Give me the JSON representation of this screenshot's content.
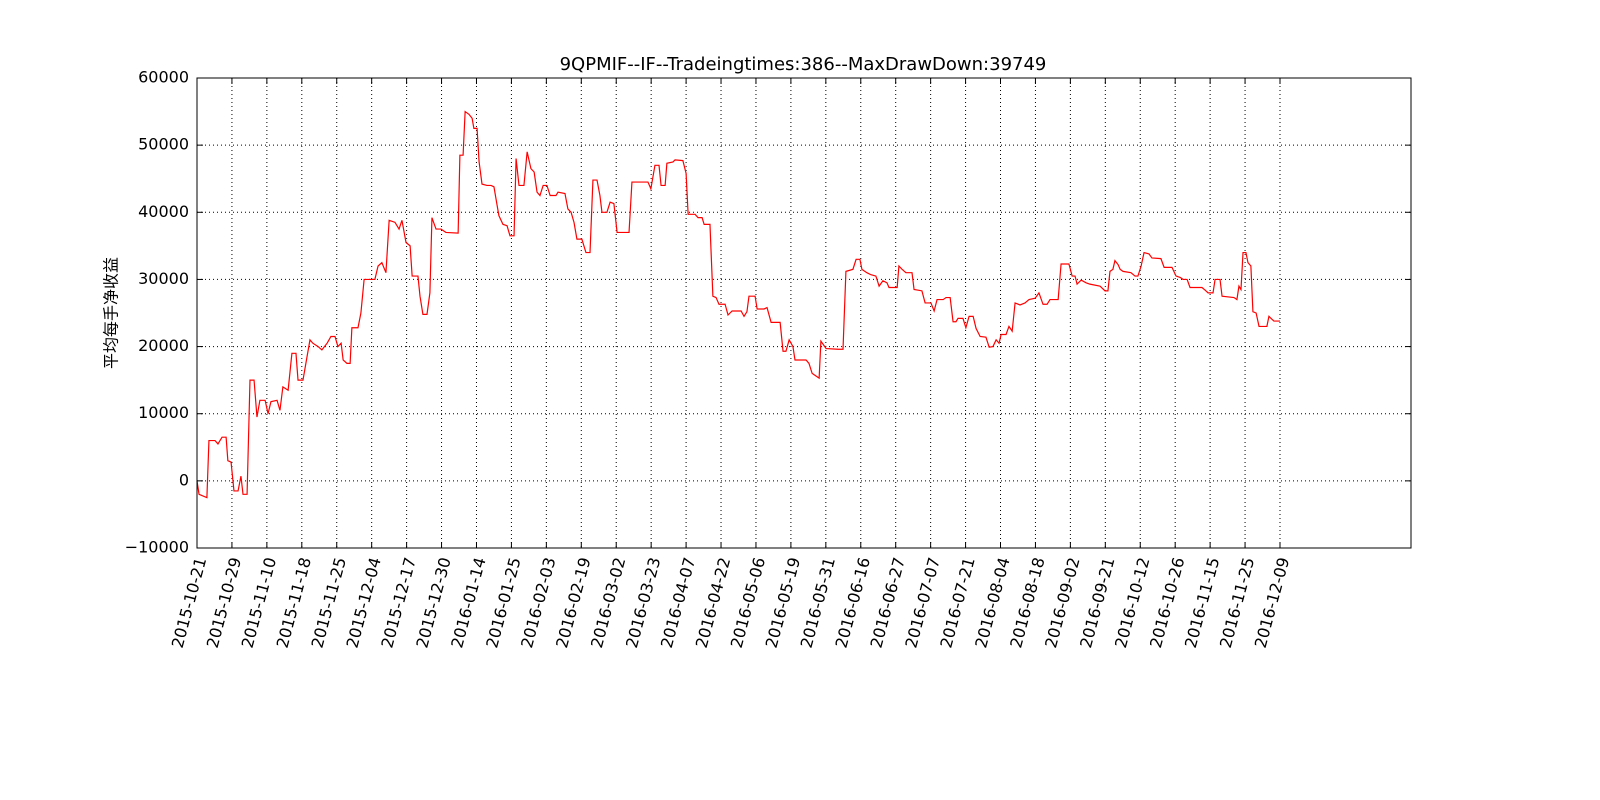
{
  "chart_data": {
    "type": "line",
    "title": "9QPMIF--IF--Tradeingtimes:386--MaxDrawDown:39749",
    "ylabel": "平均每手净收益",
    "color": "#ff0000",
    "grid": true,
    "xlim": [
      0,
      417
    ],
    "ylim": [
      -10000,
      60000
    ],
    "yticks": [
      {
        "value": -10000,
        "label": "−10000"
      },
      0,
      10000,
      20000,
      30000,
      40000,
      50000,
      60000
    ],
    "xticks": [
      {
        "value": 0,
        "label": "2015-10-21"
      },
      {
        "value": 12,
        "label": "2015-10-29"
      },
      {
        "value": 24,
        "label": "2015-11-10"
      },
      {
        "value": 36,
        "label": "2015-11-18"
      },
      {
        "value": 48,
        "label": "2015-11-25"
      },
      {
        "value": 60,
        "label": "2015-12-04"
      },
      {
        "value": 72,
        "label": "2015-12-17"
      },
      {
        "value": 84,
        "label": "2015-12-30"
      },
      {
        "value": 96,
        "label": "2016-01-14"
      },
      {
        "value": 108,
        "label": "2016-01-25"
      },
      {
        "value": 120,
        "label": "2016-02-03"
      },
      {
        "value": 132,
        "label": "2016-02-19"
      },
      {
        "value": 144,
        "label": "2016-03-02"
      },
      {
        "value": 156,
        "label": "2016-03-23"
      },
      {
        "value": 168,
        "label": "2016-04-07"
      },
      {
        "value": 180,
        "label": "2016-04-22"
      },
      {
        "value": 192,
        "label": "2016-05-06"
      },
      {
        "value": 204,
        "label": "2016-05-19"
      },
      {
        "value": 216,
        "label": "2016-05-31"
      },
      {
        "value": 228,
        "label": "2016-06-16"
      },
      {
        "value": 240,
        "label": "2016-06-27"
      },
      {
        "value": 252,
        "label": "2016-07-07"
      },
      {
        "value": 264,
        "label": "2016-07-21"
      },
      {
        "value": 276,
        "label": "2016-08-04"
      },
      {
        "value": 288,
        "label": "2016-08-18"
      },
      {
        "value": 300,
        "label": "2016-09-02"
      },
      {
        "value": 312,
        "label": "2016-09-21"
      },
      {
        "value": 324,
        "label": "2016-10-12"
      },
      {
        "value": 336,
        "label": "2016-10-26"
      },
      {
        "value": 348,
        "label": "2016-11-15"
      },
      {
        "value": 360,
        "label": "2016-11-25"
      },
      {
        "value": 372,
        "label": "2016-12-09"
      }
    ],
    "x": [
      0,
      0.7,
      3.4,
      4.1,
      6.2,
      7.2,
      8.6,
      10.0,
      10.6,
      11.7,
      12.7,
      14.1,
      15.1,
      15.8,
      17.2,
      18.2,
      19.6,
      20.6,
      21.6,
      23.4,
      24.4,
      25.4,
      27.5,
      28.5,
      29.5,
      31.3,
      32.6,
      34.0,
      34.7,
      36.4,
      37.8,
      38.8,
      39.8,
      41.6,
      42.9,
      44.7,
      46.0,
      47.4,
      48.4,
      49.5,
      50.2,
      51.5,
      52.6,
      53.2,
      55.3,
      56.3,
      57.4,
      61.1,
      62.2,
      63.5,
      64.9,
      66.0,
      68.0,
      69.4,
      70.4,
      71.8,
      73.2,
      73.9,
      75.9,
      76.6,
      77.6,
      79.0,
      80.0,
      80.7,
      82.1,
      83.8,
      85.5,
      89.7,
      90.3,
      91.4,
      92.1,
      93.4,
      94.5,
      95.1,
      96.2,
      96.9,
      97.9,
      99.6,
      101.0,
      102.0,
      103.1,
      103.7,
      105.1,
      106.5,
      107.5,
      108.9,
      109.6,
      110.6,
      112.3,
      113.4,
      114.7,
      115.8,
      116.8,
      117.8,
      118.9,
      120.2,
      121.3,
      123.3,
      124.0,
      126.4,
      127.4,
      128.5,
      129.5,
      130.5,
      132.2,
      133.6,
      135.0,
      136.0,
      137.4,
      138.4,
      139.1,
      140.8,
      141.9,
      143.2,
      144.3,
      148.4,
      149.4,
      154.9,
      155.9,
      157.3,
      158.7,
      159.4,
      160.8,
      161.4,
      163.5,
      164.2,
      166.9,
      168.0,
      168.7,
      171.1,
      172.1,
      173.5,
      174.2,
      176.2,
      177.2,
      178.3,
      179.3,
      181.4,
      182.4,
      183.8,
      186.9,
      187.9,
      188.9,
      189.6,
      191.7,
      192.4,
      194.8,
      195.8,
      197.2,
      200.3,
      201.3,
      202.3,
      203.4,
      204.7,
      205.4,
      209.2,
      210.2,
      211.3,
      213.0,
      213.7,
      214.3,
      216.1,
      220.2,
      221.9,
      222.9,
      225.3,
      226.4,
      227.7,
      228.4,
      230.1,
      231.5,
      233.2,
      234.3,
      235.6,
      237.0,
      237.7,
      240.5,
      241.1,
      242.2,
      243.5,
      245.6,
      246.3,
      249.0,
      250.1,
      252.1,
      253.2,
      254.2,
      256.3,
      257.3,
      258.7,
      259.7,
      260.7,
      261.4,
      263.1,
      264.1,
      265.2,
      266.6,
      267.6,
      269.0,
      271.0,
      272.1,
      273.4,
      274.5,
      275.5,
      276.2,
      277.9,
      278.9,
      280.0,
      281.0,
      282.7,
      284.4,
      285.8,
      287.9,
      289.2,
      290.6,
      292.0,
      293.0,
      295.8,
      296.8,
      299.5,
      300.6,
      301.6,
      302.3,
      303.7,
      305.4,
      306.7,
      310.2,
      311.9,
      312.9,
      313.6,
      314.6,
      315.3,
      316.4,
      317.1,
      318.1,
      320.8,
      322.2,
      323.2,
      324.3,
      325.3,
      327.0,
      328.0,
      331.1,
      332.2,
      334.9,
      336.3,
      337.7,
      338.7,
      340.1,
      341.1,
      345.2,
      346.3,
      347.3,
      349.0,
      349.7,
      351.4,
      352.1,
      356.2,
      357.2,
      357.9,
      358.6,
      359.3,
      360.3,
      361.0,
      362.0,
      362.7,
      363.8,
      364.8,
      367.5,
      368.2,
      368.9,
      369.9,
      372
    ],
    "values": [
      0,
      -2000,
      -2500,
      6000,
      6000,
      5500,
      6500,
      6500,
      3000,
      2800,
      -1500,
      -1500,
      700,
      -2000,
      -2000,
      15000,
      15000,
      9500,
      12000,
      12000,
      10000,
      11800,
      12000,
      10500,
      14000,
      13500,
      19000,
      19000,
      15000,
      15000,
      18500,
      21000,
      20500,
      20000,
      19500,
      20500,
      21500,
      21500,
      20000,
      20500,
      18000,
      17500,
      17500,
      22800,
      22800,
      25000,
      30000,
      30000,
      32000,
      32500,
      31000,
      38800,
      38500,
      37500,
      38800,
      35500,
      35000,
      30500,
      30500,
      27500,
      24800,
      24800,
      28000,
      39200,
      37500,
      37500,
      37000,
      36900,
      48500,
      48500,
      55000,
      54600,
      54000,
      52500,
      52500,
      47500,
      44200,
      44000,
      44000,
      43800,
      41000,
      39500,
      38200,
      38000,
      36500,
      36500,
      48000,
      44000,
      44000,
      49000,
      46500,
      46000,
      43000,
      42500,
      44000,
      44000,
      42500,
      42500,
      43000,
      42800,
      40500,
      40000,
      38500,
      36000,
      36000,
      34000,
      34000,
      44800,
      44800,
      42500,
      40000,
      40000,
      41500,
      41300,
      37000,
      37000,
      44500,
      44500,
      43500,
      47000,
      47000,
      44000,
      44000,
      47300,
      47500,
      47800,
      47700,
      45800,
      39700,
      39700,
      39200,
      39200,
      38200,
      38200,
      27500,
      27300,
      26300,
      26300,
      24700,
      25300,
      25300,
      24500,
      25200,
      27500,
      27500,
      25600,
      25600,
      25800,
      23600,
      23600,
      19300,
      19300,
      21000,
      20000,
      18000,
      18000,
      17500,
      16000,
      15500,
      15300,
      20800,
      19700,
      19600,
      19600,
      31200,
      31500,
      33000,
      33000,
      31500,
      31000,
      30700,
      30500,
      29000,
      29800,
      29500,
      28800,
      28800,
      32000,
      31500,
      31000,
      31000,
      28500,
      28300,
      26500,
      26500,
      25300,
      27000,
      27000,
      27300,
      27300,
      23700,
      23700,
      24200,
      24200,
      22800,
      24500,
      24500,
      22700,
      21500,
      21400,
      19900,
      20000,
      21000,
      20500,
      21800,
      21800,
      23000,
      22300,
      26500,
      26200,
      26500,
      27000,
      27200,
      28000,
      26300,
      26300,
      27000,
      27000,
      32300,
      32300,
      30500,
      30500,
      29300,
      29900,
      29500,
      29300,
      29000,
      28300,
      28300,
      31200,
      31500,
      32800,
      32200,
      31500,
      31200,
      31000,
      30500,
      30500,
      32000,
      34000,
      33800,
      33200,
      33100,
      31800,
      31800,
      30500,
      30300,
      30000,
      30000,
      28800,
      28800,
      28400,
      28000,
      28000,
      30000,
      30000,
      27500,
      27300,
      27000,
      29000,
      28500,
      34000,
      34000,
      32500,
      32000,
      25200,
      25000,
      23000,
      23000,
      24500,
      24200,
      23800,
      23800
    ]
  }
}
